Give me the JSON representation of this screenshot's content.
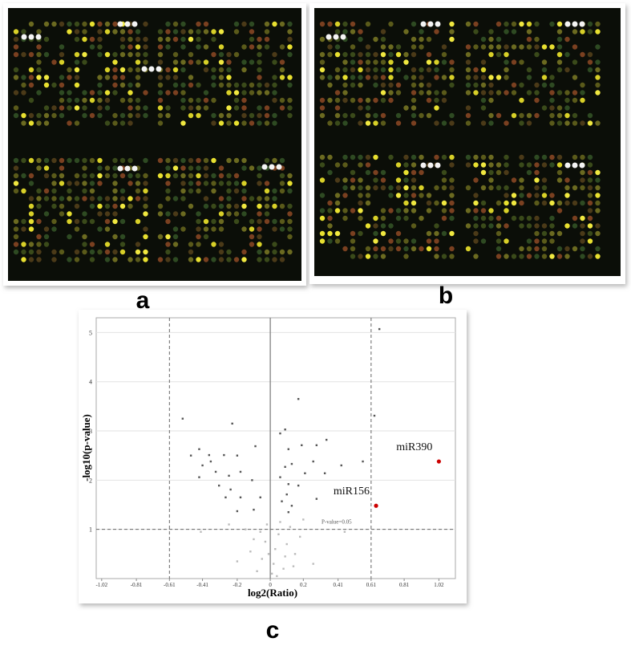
{
  "panel_labels": [
    "a",
    "b"
  ],
  "chart_data": {
    "type": "scatter",
    "panel_label": "c",
    "x_label": "log2(Ratio)",
    "y_label": "-log10(p-value)",
    "xlim": [
      -1.053,
      1.12
    ],
    "ylim": [
      0,
      5.3
    ],
    "xticks": [
      -1.02,
      -0.81,
      -0.61,
      -0.41,
      -0.2,
      0,
      0.2,
      0.41,
      0.61,
      0.81,
      1.02
    ],
    "yticks": [
      1,
      2,
      3,
      4,
      5
    ],
    "grid": true,
    "vlines": [
      -0.61,
      0.61
    ],
    "hlines": [
      1
    ],
    "annotations": [
      "P-value=0.05"
    ],
    "series": [
      {
        "color": "#555555",
        "x": [
          -0.53,
          -0.23,
          -0.43,
          -0.48,
          -0.37,
          -0.36,
          -0.41,
          -0.28,
          -0.2,
          -0.09,
          -0.43,
          -0.33,
          -0.25,
          -0.18,
          -0.31,
          -0.24,
          -0.11,
          -0.27,
          -0.18,
          -0.2,
          -0.1,
          -0.06,
          0.17,
          0.06,
          0.09,
          0.63,
          0.34,
          0.28,
          0.19,
          0.11,
          0.26,
          0.13,
          0.09,
          0.43,
          0.56,
          0.21,
          0.06,
          0.11,
          0.33,
          0.17,
          0.1,
          0.07,
          0.13,
          0.11,
          0.28,
          0.66
        ],
        "y": [
          3.25,
          3.15,
          2.63,
          2.5,
          2.51,
          2.38,
          2.3,
          2.51,
          2.5,
          2.69,
          2.06,
          2.17,
          2.09,
          2.17,
          1.89,
          1.81,
          2.0,
          1.65,
          1.65,
          1.37,
          1.4,
          1.65,
          3.65,
          2.95,
          3.03,
          3.31,
          2.82,
          2.71,
          2.71,
          2.63,
          2.38,
          2.33,
          2.27,
          2.3,
          2.38,
          2.14,
          2.06,
          1.92,
          2.14,
          1.89,
          1.71,
          1.57,
          1.48,
          1.35,
          1.62,
          5.07
        ]
      },
      {
        "color": "#bbbbbb",
        "x": [
          -0.05,
          0.02,
          -0.1,
          0.05,
          0.1,
          -0.02,
          0.15,
          -0.15,
          0.08,
          -0.08,
          0.12,
          0.03,
          -0.03,
          0.18,
          -0.2,
          0.06,
          -0.12,
          0.01,
          0.2,
          -0.06,
          0.09,
          -0.25,
          -0.42,
          0.45,
          0.26,
          0.14,
          -0.01,
          0.04
        ],
        "y": [
          0.4,
          0.3,
          0.8,
          0.9,
          0.7,
          1.1,
          0.5,
          1.0,
          0.2,
          0.15,
          1.05,
          0.6,
          0.75,
          0.85,
          0.35,
          1.15,
          0.55,
          0.1,
          1.2,
          0.95,
          0.45,
          1.1,
          0.95,
          0.95,
          0.3,
          0.25,
          0.5,
          0.05
        ]
      },
      {
        "name": "miR390",
        "color": "#cc0000",
        "x": [
          1.02
        ],
        "y": [
          2.38
        ]
      },
      {
        "name": "miR156",
        "color": "#cc0000",
        "x": [
          0.64
        ],
        "y": [
          1.48
        ]
      }
    ]
  }
}
